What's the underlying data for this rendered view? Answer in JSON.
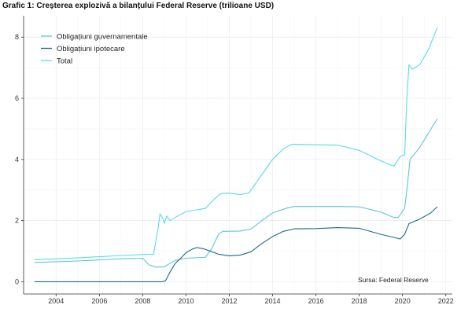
{
  "chart_data": {
    "type": "line",
    "title": "Grafic 1: Creșterea explozivă a bilanțului Federal Reserve (trilioane USD)",
    "xlabel": "",
    "ylabel": "",
    "xlim": [
      2002.5,
      2022.3
    ],
    "ylim": [
      -0.4,
      8.7
    ],
    "x_ticks": [
      2004,
      2006,
      2008,
      2010,
      2012,
      2014,
      2016,
      2018,
      2020,
      2022
    ],
    "y_ticks": [
      0,
      2,
      4,
      6,
      8
    ],
    "grid": true,
    "legend_position": "top-left",
    "annotation": "Sursa: Federal Reserve",
    "series": [
      {
        "name": "Obligațiuni guvernamentale",
        "color": "#5cc6d6",
        "points": [
          [
            2003.0,
            0.63
          ],
          [
            2005.0,
            0.68
          ],
          [
            2007.0,
            0.75
          ],
          [
            2008.0,
            0.77
          ],
          [
            2008.3,
            0.55
          ],
          [
            2008.6,
            0.48
          ],
          [
            2009.0,
            0.49
          ],
          [
            2009.5,
            0.7
          ],
          [
            2010.0,
            0.77
          ],
          [
            2010.9,
            0.8
          ],
          [
            2011.2,
            1.1
          ],
          [
            2011.5,
            1.55
          ],
          [
            2011.7,
            1.65
          ],
          [
            2012.5,
            1.66
          ],
          [
            2013.0,
            1.72
          ],
          [
            2013.5,
            2.0
          ],
          [
            2014.0,
            2.25
          ],
          [
            2014.7,
            2.42
          ],
          [
            2015.0,
            2.46
          ],
          [
            2017.0,
            2.46
          ],
          [
            2018.0,
            2.45
          ],
          [
            2019.0,
            2.28
          ],
          [
            2019.6,
            2.1
          ],
          [
            2019.8,
            2.1
          ],
          [
            2020.1,
            2.4
          ],
          [
            2020.2,
            3.0
          ],
          [
            2020.35,
            4.0
          ],
          [
            2020.8,
            4.4
          ],
          [
            2021.6,
            5.33
          ]
        ]
      },
      {
        "name": "Obligațiuni ipotecare",
        "color": "#1a6a88",
        "points": [
          [
            2003.0,
            0.0
          ],
          [
            2008.9,
            0.0
          ],
          [
            2009.05,
            0.03
          ],
          [
            2009.25,
            0.3
          ],
          [
            2009.5,
            0.6
          ],
          [
            2009.8,
            0.8
          ],
          [
            2010.0,
            0.95
          ],
          [
            2010.3,
            1.07
          ],
          [
            2010.5,
            1.12
          ],
          [
            2010.8,
            1.08
          ],
          [
            2011.2,
            0.98
          ],
          [
            2011.5,
            0.9
          ],
          [
            2012.0,
            0.85
          ],
          [
            2012.5,
            0.87
          ],
          [
            2013.0,
            0.98
          ],
          [
            2013.5,
            1.25
          ],
          [
            2014.0,
            1.48
          ],
          [
            2014.5,
            1.65
          ],
          [
            2015.0,
            1.73
          ],
          [
            2016.0,
            1.74
          ],
          [
            2017.0,
            1.77
          ],
          [
            2018.0,
            1.75
          ],
          [
            2019.0,
            1.55
          ],
          [
            2019.6,
            1.45
          ],
          [
            2019.9,
            1.4
          ],
          [
            2020.1,
            1.55
          ],
          [
            2020.3,
            1.9
          ],
          [
            2020.8,
            2.05
          ],
          [
            2021.3,
            2.25
          ],
          [
            2021.6,
            2.45
          ]
        ]
      },
      {
        "name": "Total",
        "color": "#55dceb",
        "points": [
          [
            2003.0,
            0.72
          ],
          [
            2005.0,
            0.78
          ],
          [
            2007.0,
            0.86
          ],
          [
            2008.0,
            0.89
          ],
          [
            2008.5,
            0.9
          ],
          [
            2008.7,
            1.7
          ],
          [
            2008.8,
            2.22
          ],
          [
            2008.95,
            2.05
          ],
          [
            2009.0,
            1.9
          ],
          [
            2009.1,
            2.15
          ],
          [
            2009.25,
            2.0
          ],
          [
            2009.5,
            2.1
          ],
          [
            2010.0,
            2.3
          ],
          [
            2010.5,
            2.35
          ],
          [
            2010.9,
            2.4
          ],
          [
            2011.3,
            2.7
          ],
          [
            2011.6,
            2.88
          ],
          [
            2012.0,
            2.9
          ],
          [
            2012.5,
            2.85
          ],
          [
            2012.9,
            2.9
          ],
          [
            2013.2,
            3.2
          ],
          [
            2013.6,
            3.6
          ],
          [
            2014.0,
            4.0
          ],
          [
            2014.5,
            4.35
          ],
          [
            2014.9,
            4.5
          ],
          [
            2016.0,
            4.48
          ],
          [
            2017.0,
            4.47
          ],
          [
            2018.0,
            4.3
          ],
          [
            2019.0,
            3.95
          ],
          [
            2019.6,
            3.78
          ],
          [
            2019.9,
            4.1
          ],
          [
            2020.1,
            4.15
          ],
          [
            2020.2,
            6.0
          ],
          [
            2020.3,
            7.1
          ],
          [
            2020.45,
            6.95
          ],
          [
            2020.8,
            7.1
          ],
          [
            2021.2,
            7.6
          ],
          [
            2021.6,
            8.3
          ]
        ]
      }
    ]
  }
}
